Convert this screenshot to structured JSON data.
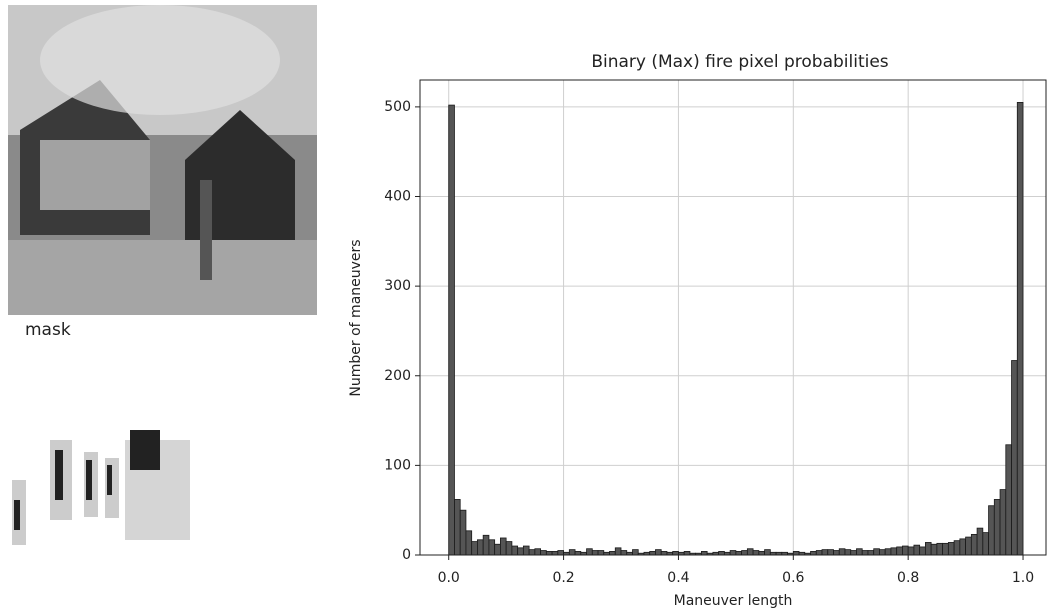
{
  "panel": {
    "mask_label": "mask"
  },
  "chart_data": {
    "type": "histogram",
    "title": "Binary (Max) fire pixel probabilities",
    "xlabel": "Maneuver length",
    "ylabel": "Number of maneuvers",
    "bins": [
      0,
      0.01,
      0.02,
      0.03,
      0.04,
      0.05,
      0.06,
      0.07,
      0.08,
      0.09,
      0.1,
      0.11,
      0.12,
      0.13,
      0.14,
      0.15,
      0.16,
      0.17,
      0.18,
      0.19,
      0.2,
      0.21,
      0.22,
      0.23,
      0.24,
      0.25,
      0.26,
      0.27,
      0.28,
      0.29,
      0.3,
      0.31,
      0.32,
      0.33,
      0.34,
      0.35,
      0.36,
      0.37,
      0.38,
      0.39,
      0.4,
      0.41,
      0.42,
      0.43,
      0.44,
      0.45,
      0.46,
      0.47,
      0.48,
      0.49,
      0.5,
      0.51,
      0.52,
      0.53,
      0.54,
      0.55,
      0.56,
      0.57,
      0.58,
      0.59,
      0.6,
      0.61,
      0.62,
      0.63,
      0.64,
      0.65,
      0.66,
      0.67,
      0.68,
      0.69,
      0.7,
      0.71,
      0.72,
      0.73,
      0.74,
      0.75,
      0.76,
      0.77,
      0.78,
      0.79,
      0.8,
      0.81,
      0.82,
      0.83,
      0.84,
      0.85,
      0.86,
      0.87,
      0.88,
      0.89,
      0.9,
      0.91,
      0.92,
      0.93,
      0.94,
      0.95,
      0.96,
      0.97,
      0.98,
      0.99,
      1
    ],
    "values": [
      502,
      62,
      50,
      27,
      15,
      17,
      22,
      17,
      12,
      19,
      15,
      10,
      8,
      10,
      6,
      7,
      5,
      4,
      4,
      5,
      3,
      6,
      4,
      3,
      7,
      5,
      5,
      3,
      4,
      8,
      5,
      3,
      6,
      2,
      3,
      4,
      6,
      4,
      3,
      4,
      3,
      4,
      2,
      2,
      4,
      2,
      3,
      4,
      3,
      5,
      4,
      5,
      7,
      5,
      4,
      6,
      3,
      3,
      3,
      2,
      4,
      3,
      2,
      4,
      5,
      6,
      6,
      5,
      7,
      6,
      5,
      7,
      5,
      5,
      7,
      6,
      7,
      8,
      9,
      10,
      9,
      11,
      9,
      14,
      12,
      13,
      13,
      14,
      16,
      18,
      20,
      23,
      30,
      25,
      55,
      62,
      73,
      123,
      217,
      505
    ],
    "color": "#555555",
    "xlim": [
      -0.05,
      1.04
    ],
    "ylim": [
      0,
      530
    ],
    "xticks": [
      {
        "value": 0,
        "label": "0.0"
      },
      0.2,
      0.4,
      0.6,
      0.8,
      {
        "value": 1,
        "label": "1.0"
      }
    ],
    "yticks": [
      0,
      100,
      200,
      300,
      400,
      500
    ],
    "grid": true
  }
}
